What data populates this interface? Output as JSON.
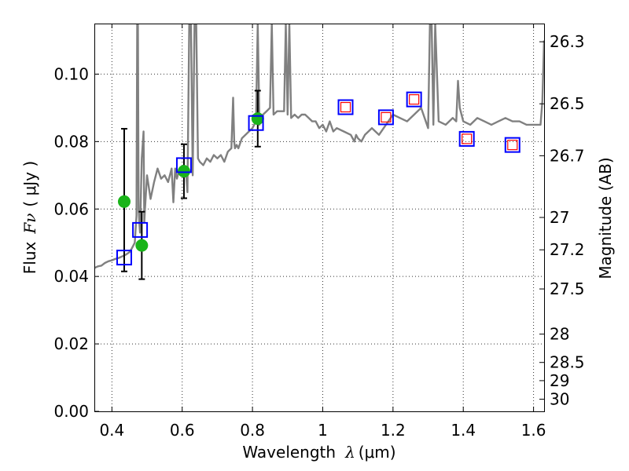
{
  "chart_data": {
    "type": "scatter",
    "xlabel_text": "Wavelength",
    "xlabel_symbol": "λ",
    "xlabel_unit": "(μm)",
    "ylabel_text": "Flux",
    "ylabel_symbol": "Fν",
    "ylabel_unit": "( μJy )",
    "y2label": "Magnitude (AB)",
    "xlim": [
      0.35,
      1.63
    ],
    "ylim": [
      0.0,
      0.115
    ],
    "grid": true,
    "x_ticks": [
      {
        "value": 0.4,
        "label": "0.4"
      },
      {
        "value": 0.6,
        "label": "0.6"
      },
      {
        "value": 0.8,
        "label": "0.8"
      },
      {
        "value": 1.0,
        "label": "1"
      },
      {
        "value": 1.2,
        "label": "1.2"
      },
      {
        "value": 1.4,
        "label": "1.4"
      },
      {
        "value": 1.6,
        "label": "1.6"
      }
    ],
    "y_ticks": [
      {
        "value": 0.0,
        "label": "0.00"
      },
      {
        "value": 0.02,
        "label": "0.02"
      },
      {
        "value": 0.04,
        "label": "0.04"
      },
      {
        "value": 0.06,
        "label": "0.06"
      },
      {
        "value": 0.08,
        "label": "0.08"
      },
      {
        "value": 0.1,
        "label": "0.10"
      }
    ],
    "y2_ticks": [
      {
        "label": "26.3",
        "flux": 0.1096
      },
      {
        "label": "26.5",
        "flux": 0.0912
      },
      {
        "label": "26.7",
        "flux": 0.0758
      },
      {
        "label": "27",
        "flux": 0.0575
      },
      {
        "label": "27.2",
        "flux": 0.0479
      },
      {
        "label": "27.5",
        "flux": 0.0363
      },
      {
        "label": "28",
        "flux": 0.0229
      },
      {
        "label": "28.5",
        "flux": 0.0145
      },
      {
        "label": "29",
        "flux": 0.0091
      },
      {
        "label": "30",
        "flux": 0.0036
      }
    ],
    "series": [
      {
        "name": "model-spectrum",
        "kind": "line",
        "color": "#808080",
        "x": [
          0.35,
          0.36,
          0.37,
          0.38,
          0.39,
          0.4,
          0.41,
          0.42,
          0.43,
          0.44,
          0.45,
          0.455,
          0.46,
          0.465,
          0.47,
          0.472,
          0.474,
          0.476,
          0.478,
          0.48,
          0.485,
          0.49,
          0.492,
          0.494,
          0.5,
          0.51,
          0.52,
          0.53,
          0.54,
          0.55,
          0.56,
          0.57,
          0.575,
          0.58,
          0.585,
          0.59,
          0.6,
          0.61,
          0.615,
          0.62,
          0.625,
          0.63,
          0.635,
          0.64,
          0.645,
          0.65,
          0.66,
          0.67,
          0.68,
          0.69,
          0.7,
          0.71,
          0.72,
          0.73,
          0.74,
          0.745,
          0.748,
          0.75,
          0.755,
          0.76,
          0.77,
          0.78,
          0.79,
          0.8,
          0.81,
          0.815,
          0.82,
          0.83,
          0.84,
          0.85,
          0.855,
          0.86,
          0.87,
          0.88,
          0.89,
          0.895,
          0.9,
          0.905,
          0.91,
          0.92,
          0.93,
          0.94,
          0.95,
          0.96,
          0.97,
          0.98,
          0.99,
          1.0,
          1.01,
          1.02,
          1.03,
          1.04,
          1.06,
          1.08,
          1.09,
          1.095,
          1.1,
          1.11,
          1.12,
          1.14,
          1.16,
          1.18,
          1.2,
          1.22,
          1.24,
          1.26,
          1.28,
          1.3,
          1.305,
          1.31,
          1.315,
          1.32,
          1.33,
          1.35,
          1.37,
          1.38,
          1.385,
          1.39,
          1.4,
          1.42,
          1.44,
          1.46,
          1.48,
          1.5,
          1.52,
          1.54,
          1.56,
          1.58,
          1.6,
          1.61,
          1.62,
          1.625,
          1.63
        ],
        "y": [
          0.0425,
          0.043,
          0.0432,
          0.044,
          0.0445,
          0.0448,
          0.0452,
          0.0455,
          0.046,
          0.0465,
          0.0472,
          0.048,
          0.049,
          0.05,
          0.058,
          0.115,
          0.115,
          0.06,
          0.056,
          0.053,
          0.075,
          0.083,
          0.056,
          0.06,
          0.07,
          0.063,
          0.068,
          0.072,
          0.069,
          0.07,
          0.068,
          0.072,
          0.062,
          0.072,
          0.069,
          0.071,
          0.072,
          0.072,
          0.065,
          0.115,
          0.115,
          0.07,
          0.115,
          0.115,
          0.075,
          0.074,
          0.073,
          0.075,
          0.074,
          0.076,
          0.075,
          0.076,
          0.074,
          0.077,
          0.078,
          0.093,
          0.08,
          0.078,
          0.079,
          0.078,
          0.081,
          0.082,
          0.083,
          0.084,
          0.086,
          0.115,
          0.085,
          0.088,
          0.089,
          0.09,
          0.115,
          0.088,
          0.089,
          0.089,
          0.089,
          0.115,
          0.088,
          0.115,
          0.087,
          0.088,
          0.087,
          0.088,
          0.088,
          0.087,
          0.086,
          0.086,
          0.084,
          0.085,
          0.083,
          0.086,
          0.083,
          0.084,
          0.083,
          0.082,
          0.08,
          0.082,
          0.081,
          0.08,
          0.082,
          0.084,
          0.082,
          0.085,
          0.088,
          0.087,
          0.086,
          0.088,
          0.09,
          0.084,
          0.115,
          0.115,
          0.085,
          0.115,
          0.086,
          0.085,
          0.087,
          0.086,
          0.098,
          0.09,
          0.086,
          0.085,
          0.087,
          0.086,
          0.085,
          0.086,
          0.087,
          0.086,
          0.086,
          0.085,
          0.085,
          0.085,
          0.085,
          0.092,
          0.11
        ]
      },
      {
        "name": "green-photometry",
        "kind": "points-errorbars",
        "color": "#19b419",
        "points": [
          {
            "x": 0.435,
            "y": 0.0622,
            "ylo": 0.0415,
            "yhi": 0.0838
          },
          {
            "x": 0.485,
            "y": 0.0492,
            "ylo": 0.0392,
            "yhi": 0.0592
          },
          {
            "x": 0.605,
            "y": 0.0712,
            "ylo": 0.0632,
            "yhi": 0.0792
          },
          {
            "x": 0.815,
            "y": 0.0868,
            "ylo": 0.0785,
            "yhi": 0.0951
          }
        ]
      },
      {
        "name": "blue-open-squares",
        "kind": "markers",
        "color": "#0000ff",
        "points": [
          {
            "x": 0.435,
            "y": 0.0456
          },
          {
            "x": 0.48,
            "y": 0.0538
          },
          {
            "x": 0.605,
            "y": 0.073
          },
          {
            "x": 0.81,
            "y": 0.0855
          },
          {
            "x": 1.065,
            "y": 0.0902
          },
          {
            "x": 1.18,
            "y": 0.0872
          },
          {
            "x": 1.26,
            "y": 0.0925
          },
          {
            "x": 1.41,
            "y": 0.0808
          },
          {
            "x": 1.54,
            "y": 0.079
          }
        ]
      },
      {
        "name": "red-open-squares",
        "kind": "markers",
        "color": "#ff0000",
        "points": [
          {
            "x": 1.065,
            "y": 0.0902
          },
          {
            "x": 1.18,
            "y": 0.0872
          },
          {
            "x": 1.26,
            "y": 0.0925
          },
          {
            "x": 1.41,
            "y": 0.0808
          },
          {
            "x": 1.54,
            "y": 0.079
          }
        ]
      }
    ]
  }
}
